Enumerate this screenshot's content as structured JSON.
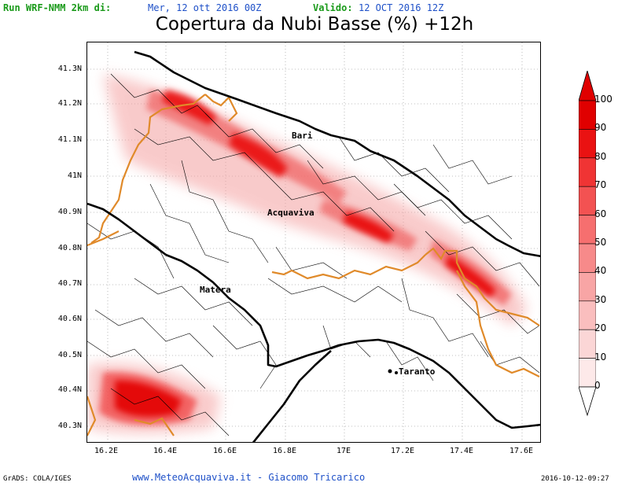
{
  "header": {
    "run_label": "Run WRF-NMM 2km di:",
    "run_date": "Mer, 12 ott 2016 00Z",
    "valid_label": "Valido:",
    "valid_date": "12 OCT 2016 12Z"
  },
  "title": "Copertura da Nubi Basse (%) +12h",
  "latitude_labels": [
    "41.3N",
    "41.2N",
    "41.1N",
    "41N",
    "40.9N",
    "40.8N",
    "40.7N",
    "40.6N",
    "40.5N",
    "40.4N",
    "40.3N"
  ],
  "longitude_labels": [
    "16.2E",
    "16.4E",
    "16.6E",
    "16.8E",
    "17E",
    "17.2E",
    "17.4E",
    "17.6E"
  ],
  "cities": [
    "Bari",
    "Acquaviva",
    "Matera",
    "Taranto"
  ],
  "legend": {
    "labels": [
      "100",
      "90",
      "80",
      "70",
      "60",
      "50",
      "40",
      "30",
      "20",
      "10",
      "0"
    ],
    "colors": [
      "#e00000",
      "#ea1212",
      "#f03434",
      "#f35252",
      "#f66f6f",
      "#f78a8a",
      "#f8a5a5",
      "#fabebe",
      "#fbd6d6",
      "#fde9e9"
    ]
  },
  "colors": {
    "region_border": "#e08a2a",
    "coast": "#000000",
    "cloud_core": "#e80000"
  },
  "footer": {
    "left": "GrADS: COLA/IGES",
    "center": "www.MeteoAcquaviva.it - Giacomo Tricarico",
    "right": "2016-10-12-09:27"
  }
}
